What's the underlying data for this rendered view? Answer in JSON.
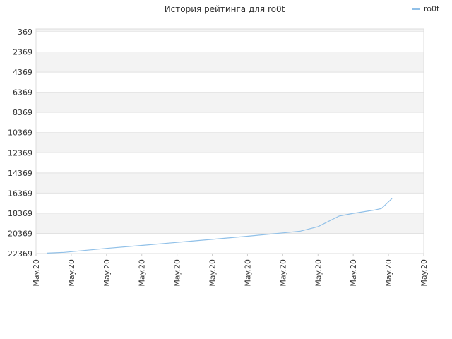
{
  "chart_data": {
    "type": "line",
    "title": "История рейтинга для ro0t",
    "xlabel": "",
    "ylabel": "",
    "y_inverted": true,
    "ylim": [
      369,
      22369
    ],
    "y_ticks": [
      369,
      2369,
      4369,
      6369,
      8369,
      10369,
      12369,
      14369,
      16369,
      18369,
      20369,
      22369
    ],
    "x_ticks": [
      "May.20",
      "May.20",
      "May.20",
      "May.20",
      "May.20",
      "May.20",
      "May.20",
      "May.20",
      "May.20",
      "May.20",
      "May.20",
      "May.20"
    ],
    "grid": true,
    "legend": "top-right",
    "series": [
      {
        "name": "ro0t",
        "color": "#90c0e8",
        "points": [
          {
            "x": 0.3,
            "y": 22330
          },
          {
            "x": 0.8,
            "y": 22250
          },
          {
            "x": 2.0,
            "y": 21860
          },
          {
            "x": 3.0,
            "y": 21560
          },
          {
            "x": 4.0,
            "y": 21260
          },
          {
            "x": 5.0,
            "y": 20960
          },
          {
            "x": 6.0,
            "y": 20650
          },
          {
            "x": 7.0,
            "y": 20320
          },
          {
            "x": 7.5,
            "y": 20150
          },
          {
            "x": 8.0,
            "y": 19700
          },
          {
            "x": 8.6,
            "y": 18650
          },
          {
            "x": 9.0,
            "y": 18380
          },
          {
            "x": 9.6,
            "y": 18050
          },
          {
            "x": 9.8,
            "y": 17900
          },
          {
            "x": 10.1,
            "y": 16900
          }
        ]
      }
    ]
  }
}
